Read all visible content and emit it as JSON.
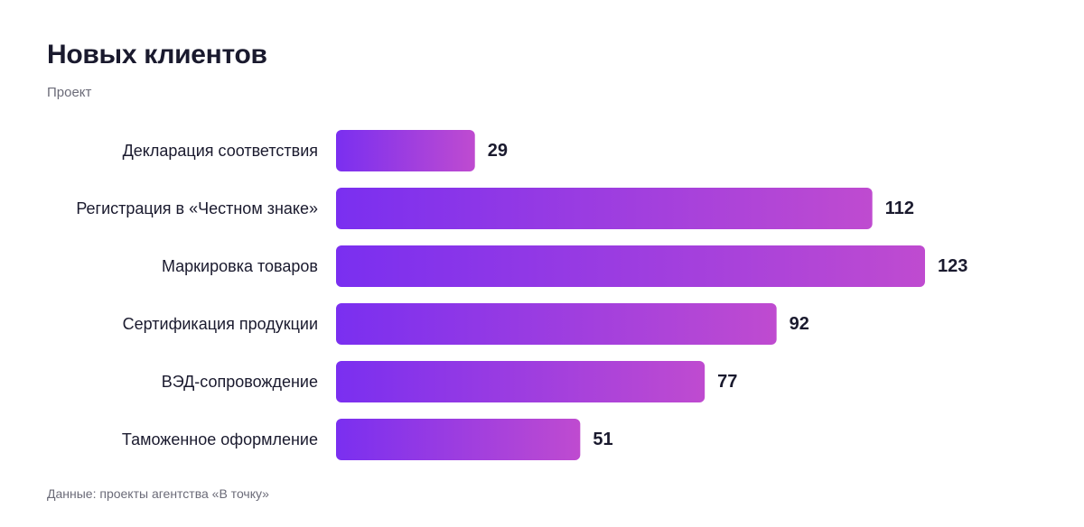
{
  "chart_data": {
    "type": "bar",
    "orientation": "horizontal",
    "title": "Новых клиентов",
    "subtitle": "Проект",
    "source_note": "Данные: проекты агентства «В точку»",
    "categories": [
      "Декларация соответствия",
      "Регистрация в «Честном знаке»",
      "Маркировка товаров",
      "Сертификация продукции",
      "ВЭД-сопровождение",
      "Таможенное оформление"
    ],
    "values": [
      29,
      112,
      123,
      92,
      77,
      51
    ],
    "xlabel": "",
    "ylabel": "",
    "xlim": [
      0,
      123
    ],
    "grid": false,
    "legend": "none",
    "data_labels": true,
    "colors": {
      "bar_gradient_start": "#7a2ff0",
      "bar_gradient_end": "#bf4bd0",
      "text": "#1a1a2e",
      "muted_text": "#6b6b78"
    }
  }
}
